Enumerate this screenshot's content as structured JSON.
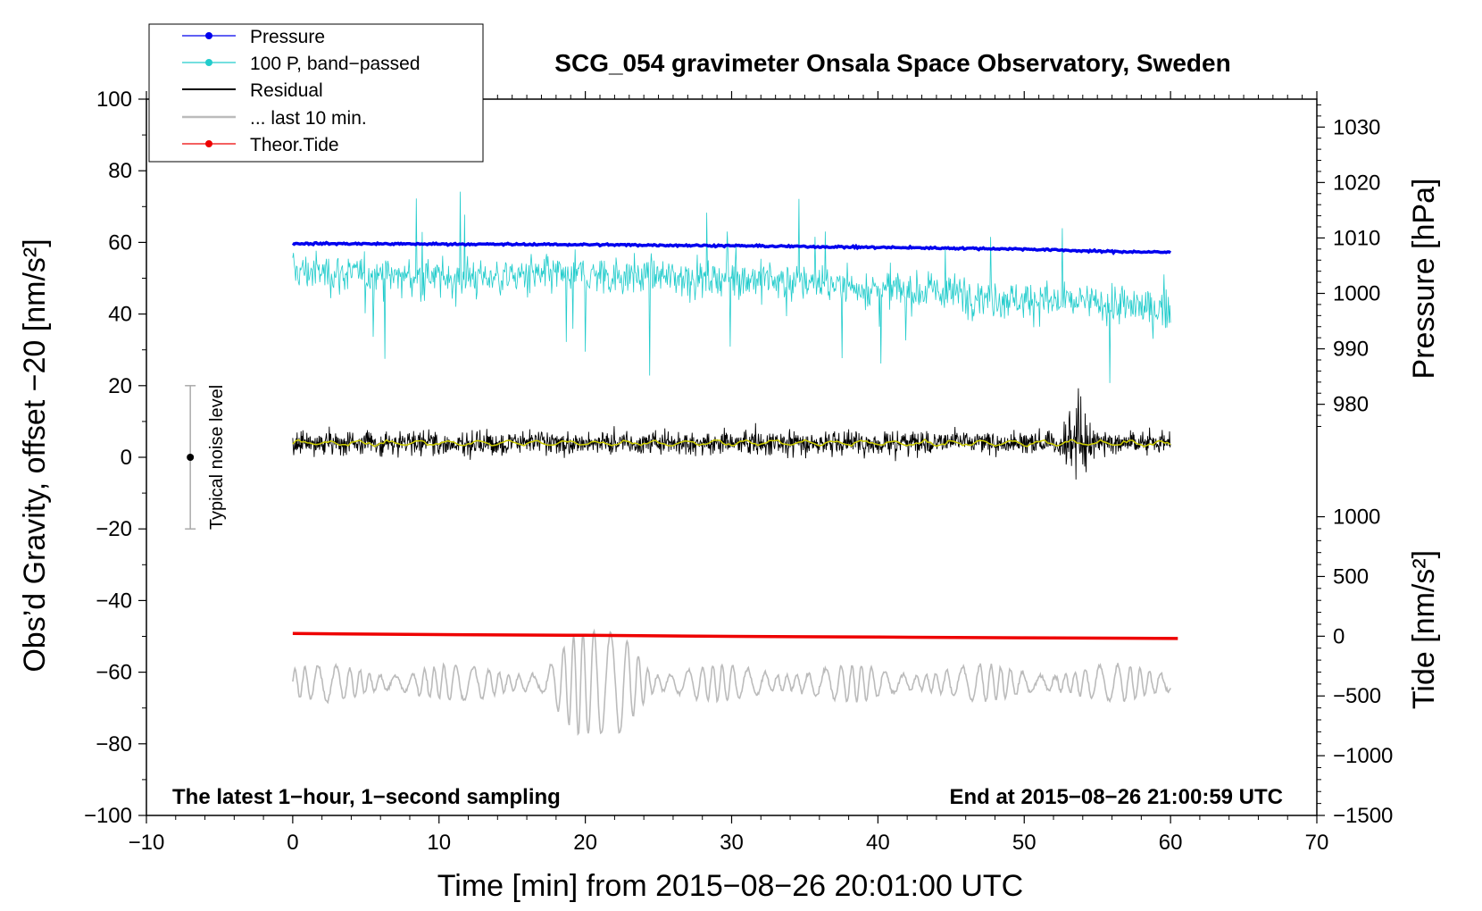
{
  "chart_data": {
    "type": "line",
    "title": "SCG_054 gravimeter Onsala Space Observatory, Sweden",
    "xlabel": "Time [min] from 2015−08−26 20:01:00 UTC",
    "ylabel_left": "Obs’d Gravity, offset −20 [nm/s²]",
    "ylabel_right_pressure": "Pressure [hPa]",
    "ylabel_right_tide": "Tide [nm/s²]",
    "xlim": [
      -10,
      70
    ],
    "ylim": [
      -100,
      100
    ],
    "x_ticks": [
      {
        "value": -10,
        "label": "−10"
      },
      {
        "value": 0,
        "label": "0"
      },
      {
        "value": 10,
        "label": "10"
      },
      {
        "value": 20,
        "label": "20"
      },
      {
        "value": 30,
        "label": "30"
      },
      {
        "value": 40,
        "label": "40"
      },
      {
        "value": 50,
        "label": "50"
      },
      {
        "value": 60,
        "label": "60"
      },
      {
        "value": 70,
        "label": "70"
      }
    ],
    "y_ticks": [
      {
        "value": 100,
        "label": "100"
      },
      {
        "value": 80,
        "label": "80"
      },
      {
        "value": 60,
        "label": "60"
      },
      {
        "value": 40,
        "label": "40"
      },
      {
        "value": 20,
        "label": "20"
      },
      {
        "value": 0,
        "label": "0"
      },
      {
        "value": -20,
        "label": "−20"
      },
      {
        "value": -40,
        "label": "−40"
      },
      {
        "value": -60,
        "label": "−60"
      },
      {
        "value": -80,
        "label": "−80"
      },
      {
        "value": -100,
        "label": "−100"
      }
    ],
    "pressure_axis": {
      "map": [
        {
          "value": 1030,
          "gravity": 92.2
        },
        {
          "value": 980,
          "gravity": 14.8
        }
      ],
      "ticks": [
        {
          "value": 1030,
          "label": "1030"
        },
        {
          "value": 1020,
          "label": "1020"
        },
        {
          "value": 1010,
          "label": "1010"
        },
        {
          "value": 1000,
          "label": "1000"
        },
        {
          "value": 990,
          "label": "990"
        },
        {
          "value": 980,
          "label": "980"
        }
      ]
    },
    "tide_axis": {
      "map": [
        {
          "value": 1000,
          "gravity": -16.6
        },
        {
          "value": -1500,
          "gravity": -100
        }
      ],
      "ticks": [
        {
          "value": 1000,
          "label": "1000"
        },
        {
          "value": 500,
          "label": "500"
        },
        {
          "value": 0,
          "label": "0"
        },
        {
          "value": -500,
          "label": "−500"
        },
        {
          "value": -1000,
          "label": "−1000"
        },
        {
          "value": -1500,
          "label": "−1500"
        }
      ]
    },
    "series": [
      {
        "name": "Pressure",
        "color": "#0000ee",
        "x": [
          0,
          10,
          20,
          30,
          40,
          50,
          55,
          60
        ],
        "y": [
          1009.0,
          1008.9,
          1008.8,
          1008.6,
          1008.3,
          1008.0,
          1007.6,
          1007.4
        ]
      },
      {
        "name": "100 P, band−passed",
        "color": "#22cccc",
        "x": [
          0,
          10,
          20,
          30,
          35,
          40,
          45,
          50,
          55,
          60
        ],
        "y": [
          52,
          50,
          51,
          50,
          49,
          47,
          46,
          44,
          43,
          41
        ]
      },
      {
        "name": "Residual",
        "color": "#000000",
        "x": [
          0,
          10,
          20,
          30,
          40,
          50,
          53.5,
          60
        ],
        "y": [
          4,
          4,
          4,
          4,
          4,
          4,
          4,
          4
        ]
      },
      {
        "name": "... last 10 min.",
        "color": "#bbbbbb",
        "x": [
          0,
          10,
          19,
          21,
          23,
          30,
          40,
          50,
          60
        ],
        "y": [
          -63,
          -63,
          -63,
          -63,
          -63,
          -63,
          -63,
          -63,
          -63
        ]
      },
      {
        "name": "Theor.Tide",
        "color": "#ee0000",
        "x": [
          0,
          10,
          20,
          30,
          40,
          50,
          60.5
        ],
        "y": [
          -49.2,
          -49.5,
          -49.7,
          -50.0,
          -50.2,
          -50.4,
          -50.6
        ]
      }
    ],
    "noise_level": {
      "label": "Typical noise level",
      "x": -7,
      "center": 0,
      "range": [
        -20,
        20
      ]
    },
    "notes": {
      "left": "The latest 1−hour, 1−second sampling",
      "right": "End at 2015−08−26 21:00:59 UTC"
    },
    "legend_position": "top-left"
  }
}
